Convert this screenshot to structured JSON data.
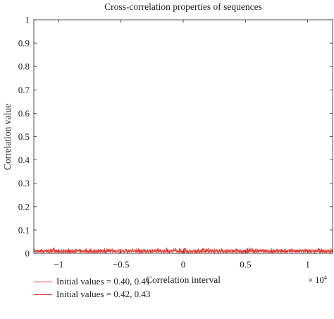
{
  "chart_data": {
    "type": "line",
    "title": "Cross-correlation properties of sequences",
    "xlabel": "Correlation interval",
    "ylabel": "Correlation value",
    "x_multiplier": "× 10",
    "x_multiplier_exp": "4",
    "xlim": [
      -12000,
      12000
    ],
    "ylim": [
      0,
      1
    ],
    "x_ticks": [
      -1,
      -0.5,
      0,
      0.5,
      1
    ],
    "x_tick_labels": [
      "−1",
      "−0.5",
      "0",
      "0.5",
      "1"
    ],
    "y_ticks": [
      0,
      0.1,
      0.2,
      0.3,
      0.4,
      0.5,
      0.6,
      0.7,
      0.8,
      0.9,
      1
    ],
    "y_tick_labels": [
      "0",
      "0.1",
      "0.2",
      "0.3",
      "0.4",
      "0.5",
      "0.6",
      "0.7",
      "0.8",
      "0.9",
      "1"
    ],
    "grid": false,
    "legend_position": "bottom-left",
    "series": [
      {
        "name": "Initial values = 0.40, 0.41",
        "color": "#e23a32",
        "approx_level": 0.01,
        "approx_peak": 0.025
      },
      {
        "name": "Initial values = 0.42, 0.43",
        "color": "#e23a32",
        "approx_level": 0.01,
        "approx_peak": 0.02
      }
    ]
  }
}
